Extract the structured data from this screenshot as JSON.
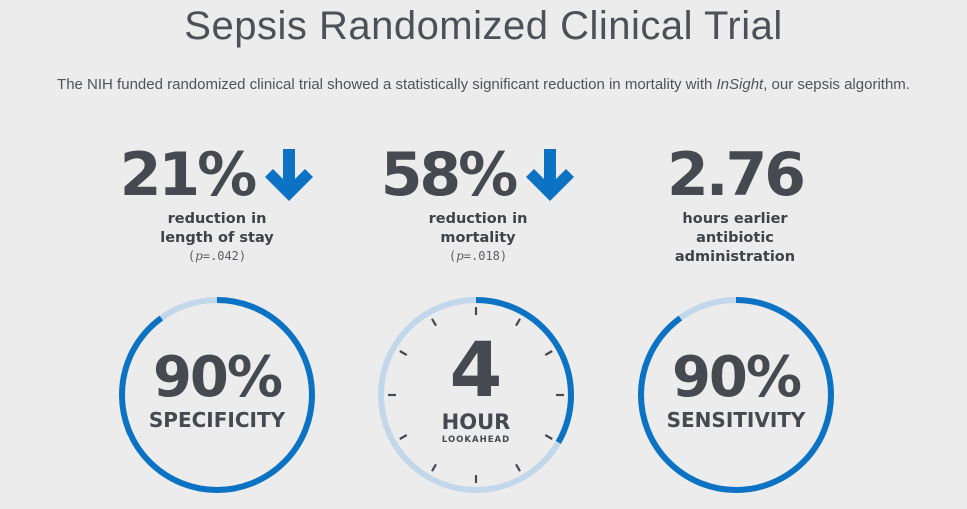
{
  "header": {
    "title": "Sepsis Randomized Clinical Trial",
    "subtitle_before": "The NIH funded randomized clinical trial showed a statistically significant reduction in mortality with ",
    "subtitle_product": "InSight",
    "subtitle_after": ", our sepsis algorithm."
  },
  "stats": [
    {
      "value": "21%",
      "line1": "reduction in",
      "line2": "length of stay",
      "line3": "",
      "p_prefix": "(",
      "p_letter": "p",
      "p_value": "=.042)",
      "arrow": "down-arrow-icon"
    },
    {
      "value": "58%",
      "line1": "reduction in",
      "line2": "mortality",
      "line3": "",
      "p_prefix": "(",
      "p_letter": "p",
      "p_value": "=.018)",
      "arrow": "down-arrow-icon"
    },
    {
      "value": "2.76",
      "line1": "hours earlier",
      "line2": "antibiotic",
      "line3": "administration"
    }
  ],
  "rings": [
    {
      "value": "90%",
      "label": "SPECIFICITY",
      "fraction": 0.9
    },
    {
      "value": "4",
      "label": "HOUR",
      "sublabel": "LOOKAHEAD",
      "fraction": 0.333
    },
    {
      "value": "90%",
      "label": "SENSITIVITY",
      "fraction": 0.9
    }
  ],
  "colors": {
    "accent": "#0b72c4",
    "ring_track": "#c2d8ea",
    "text": "#46494f",
    "background": "#ececec"
  }
}
